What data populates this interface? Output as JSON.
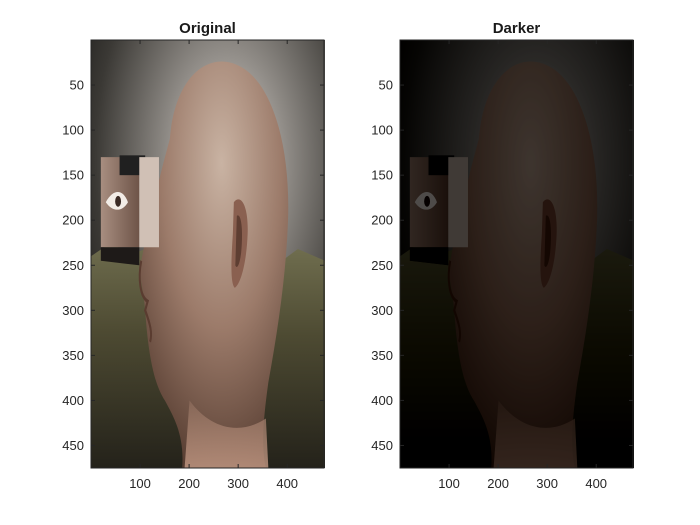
{
  "chart_data": [
    {
      "type": "image",
      "title": "Original",
      "image": "photo of a bald man's head in profile with a rectangular cut-out panel revealing an eye, against a dark painted landscape background",
      "xlim": [
        0,
        475
      ],
      "ylim": [
        0,
        475
      ],
      "y_reversed": true,
      "xticks": [
        100,
        200,
        300,
        400
      ],
      "yticks": [
        50,
        100,
        150,
        200,
        250,
        300,
        350,
        400,
        450
      ],
      "xtick_labels": [
        "100",
        "200",
        "300",
        "400"
      ],
      "ytick_labels": [
        "50",
        "100",
        "150",
        "200",
        "250",
        "300",
        "350",
        "400",
        "450"
      ],
      "grid": false
    },
    {
      "type": "image",
      "title": "Darker",
      "image": "same photo rendered darker",
      "xlim": [
        0,
        475
      ],
      "ylim": [
        0,
        475
      ],
      "y_reversed": true,
      "xticks": [
        100,
        200,
        300,
        400
      ],
      "yticks": [
        50,
        100,
        150,
        200,
        250,
        300,
        350,
        400,
        450
      ],
      "xtick_labels": [
        "100",
        "200",
        "300",
        "400"
      ],
      "ytick_labels": [
        "50",
        "100",
        "150",
        "200",
        "250",
        "300",
        "350",
        "400",
        "450"
      ],
      "grid": false
    }
  ]
}
